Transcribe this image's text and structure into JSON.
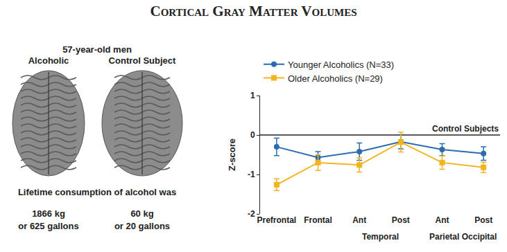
{
  "title": "Cortical Gray Matter Volumes",
  "left_panel": {
    "subtitle": "57-year-old men",
    "caption": "Lifetime consumption of alcohol was",
    "images": [
      {
        "label": "Alcoholic",
        "consumption": [
          "1866 kg",
          "or 625 gallons"
        ]
      },
      {
        "label": "Control Subject",
        "consumption": [
          "60 kg",
          "or 20 gallons"
        ]
      }
    ]
  },
  "chart_data": {
    "type": "line",
    "y_label": "Z-score",
    "categories": [
      "Prefrontal",
      "Frontal",
      "Ant",
      "Post",
      "Ant",
      "Post"
    ],
    "group_labels": [
      {
        "label": "Temporal",
        "categories": [
          2,
          3
        ]
      },
      {
        "label": "Parietal Occipital",
        "categories": [
          4,
          5
        ]
      }
    ],
    "reference_line": {
      "value": 0,
      "label": "Control Subjects"
    },
    "ylim": [
      -2,
      1
    ],
    "yticks": [
      -2,
      -1,
      0,
      1
    ],
    "grid": false,
    "legend": "top",
    "series": [
      {
        "name": "Younger Alcoholics (N=33)",
        "color": "#2b6cb0",
        "marker": "circle",
        "values": [
          -0.3,
          -0.57,
          -0.42,
          -0.17,
          -0.37,
          -0.47
        ],
        "errors": [
          0.22,
          0.15,
          0.22,
          0.18,
          0.15,
          0.17
        ]
      },
      {
        "name": "Older Alcoholics (N=29)",
        "color": "#f2b51f",
        "marker": "square",
        "values": [
          -1.26,
          -0.7,
          -0.76,
          -0.18,
          -0.7,
          -0.82
        ],
        "errors": [
          0.15,
          0.2,
          0.18,
          0.25,
          0.17,
          0.13
        ]
      }
    ]
  }
}
